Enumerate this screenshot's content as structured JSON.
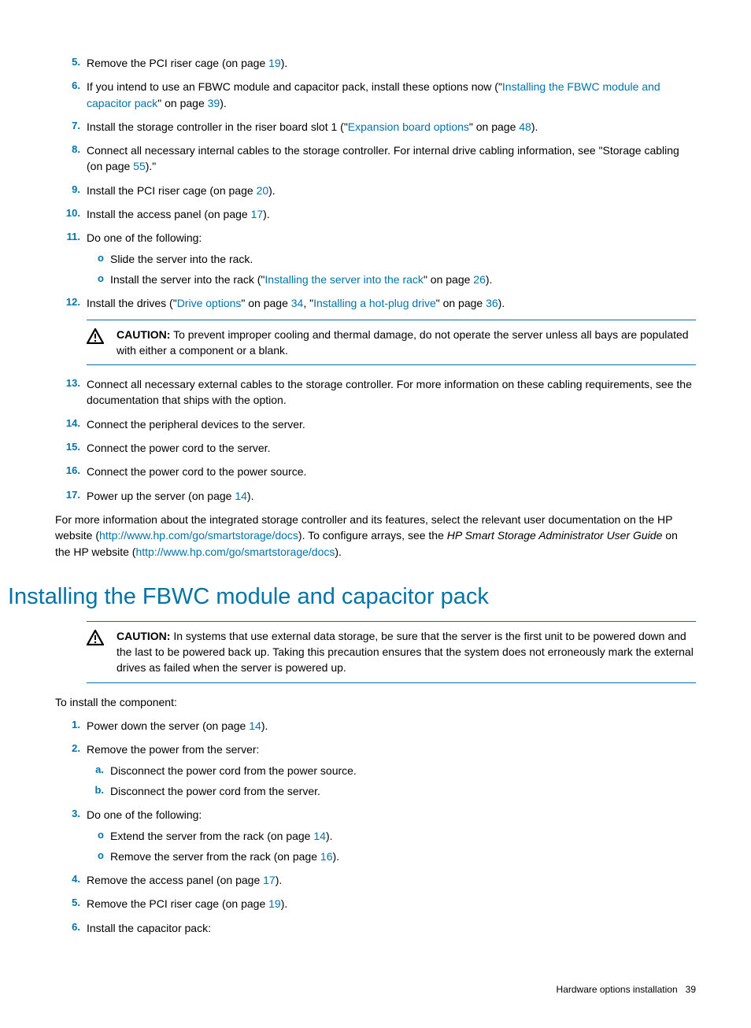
{
  "colors": {
    "accent": "#0073a8",
    "text": "#000000",
    "bg": "#ffffff"
  },
  "font": {
    "family": "Arial",
    "body_size": 14,
    "heading_size": 29
  },
  "steps_top": [
    {
      "num": "5.",
      "pre": "Remove the PCI riser cage (on page ",
      "link": "19",
      "post": ")."
    },
    {
      "num": "6.",
      "pre": "If you intend to use an FBWC module and capacitor pack, install these options now (\"",
      "link": "Installing the FBWC module and capacitor pack",
      "mid": "\" on page ",
      "link2": "39",
      "post": ")."
    },
    {
      "num": "7.",
      "pre": "Install the storage controller in the riser board slot 1 (\"",
      "link": "Expansion board options",
      "mid": "\" on page ",
      "link2": "48",
      "post": ")."
    },
    {
      "num": "8.",
      "pre": "Connect all necessary internal cables to the storage controller. For internal drive cabling information, see \"Storage cabling (on page ",
      "link": "55",
      "post": ").\""
    },
    {
      "num": "9.",
      "pre": "Install the PCI riser cage (on page ",
      "link": "20",
      "post": ")."
    },
    {
      "num": "10.",
      "pre": "Install the access panel (on page ",
      "link": "17",
      "post": ")."
    },
    {
      "num": "11.",
      "pre": "Do one of the following:",
      "subs": [
        {
          "bul": "o",
          "pre": "Slide the server into the rack."
        },
        {
          "bul": "o",
          "pre": "Install the server into the rack (\"",
          "link": "Installing the server into the rack",
          "mid": "\" on page ",
          "link2": "26",
          "post": ")."
        }
      ]
    },
    {
      "num": "12.",
      "pre": "Install the drives (\"",
      "link": "Drive options",
      "mid": "\" on page ",
      "link2": "34",
      "mid2": ", \"",
      "link3": "Installing a hot-plug drive",
      "mid3": "\" on page ",
      "link4": "36",
      "post": ")."
    }
  ],
  "caution1": {
    "label": "CAUTION:",
    "text": "To prevent improper cooling and thermal damage, do not operate the server unless all bays are populated with either a component or a blank."
  },
  "steps_mid": [
    {
      "num": "13.",
      "pre": "Connect all necessary external cables to the storage controller. For more information on these cabling requirements, see the documentation that ships with the option."
    },
    {
      "num": "14.",
      "pre": "Connect the peripheral devices to the server."
    },
    {
      "num": "15.",
      "pre": "Connect the power cord to the server."
    },
    {
      "num": "16.",
      "pre": "Connect the power cord to the power source."
    },
    {
      "num": "17.",
      "pre": "Power up the server (on page ",
      "link": "14",
      "post": ")."
    }
  ],
  "para1": {
    "p1": "For more information about the integrated storage controller and its features, select the relevant user documentation on the HP website (",
    "l1": "http://www.hp.com/go/smartstorage/docs",
    "p2": "). To configure arrays, see the ",
    "italic": "HP Smart Storage Administrator User Guide",
    "p3": " on the HP website (",
    "l2": "http://www.hp.com/go/smartstorage/docs",
    "p4": ")."
  },
  "heading": "Installing the FBWC module and capacitor pack",
  "caution2": {
    "label": "CAUTION:",
    "text": "In systems that use external data storage, be sure that the server is the first unit to be powered down and the last to be powered back up. Taking this precaution ensures that the system does not erroneously mark the external drives as failed when the server is powered up."
  },
  "intro2": "To install the component:",
  "steps_bottom": [
    {
      "num": "1.",
      "pre": "Power down the server (on page ",
      "link": "14",
      "post": ")."
    },
    {
      "num": "2.",
      "pre": "Remove the power from the server:",
      "subs": [
        {
          "bul": "a.",
          "pre": "Disconnect the power cord from the power source."
        },
        {
          "bul": "b.",
          "pre": "Disconnect the power cord from the server."
        }
      ]
    },
    {
      "num": "3.",
      "pre": "Do one of the following:",
      "subs": [
        {
          "bul": "o",
          "pre": "Extend the server from the rack (on page ",
          "link": "14",
          "post": ")."
        },
        {
          "bul": "o",
          "pre": "Remove the server from the rack (on page ",
          "link": "16",
          "post": ")."
        }
      ]
    },
    {
      "num": "4.",
      "pre": "Remove the access panel (on page ",
      "link": "17",
      "post": ")."
    },
    {
      "num": "5.",
      "pre": "Remove the PCI riser cage (on page ",
      "link": "19",
      "post": ")."
    },
    {
      "num": "6.",
      "pre": "Install the capacitor pack:"
    }
  ],
  "footer": {
    "section": "Hardware options installation",
    "page": "39"
  }
}
